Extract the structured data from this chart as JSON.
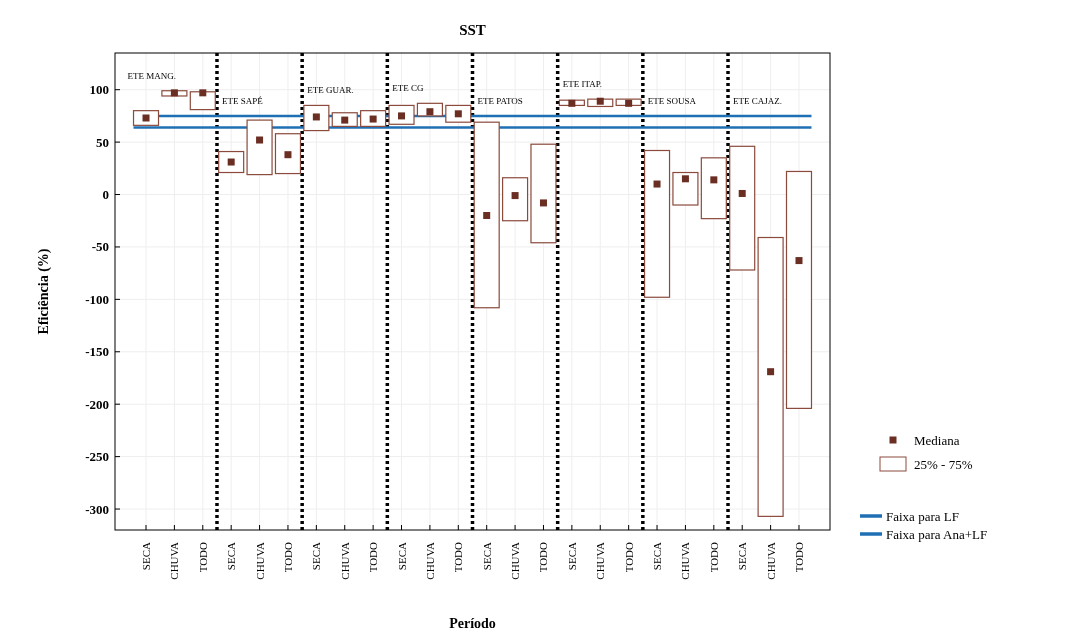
{
  "chart_data": {
    "type": "bar",
    "title": "SST",
    "xlabel": "Período",
    "ylabel": "Eficiência (%)",
    "categories": [
      "SECA",
      "CHUVA",
      "TODO",
      "SECA",
      "CHUVA",
      "TODO",
      "SECA",
      "CHUVA",
      "TODO",
      "SECA",
      "CHUVA",
      "TODO",
      "SECA",
      "CHUVA",
      "TODO",
      "SECA",
      "CHUVA",
      "TODO",
      "SECA",
      "CHUVA",
      "TODO",
      "SECA",
      "CHUVA",
      "TODO"
    ],
    "annotations": [
      "ETE MANG.",
      "ETE SAPÉ",
      "ETE GUAR.",
      "ETE  CG",
      "ETE PATOS",
      "ETE ITAP.",
      "ETE SOUSA",
      "ETE CAJAZ."
    ],
    "series": [
      {
        "name": "Mediana",
        "type": "scatter",
        "color": "#6b2e22",
        "marker": "square",
        "values": [
          73,
          97,
          97,
          31,
          52,
          38,
          74,
          71,
          72,
          75,
          79,
          77,
          -20,
          -1,
          -8,
          87,
          89,
          87,
          10,
          15,
          14,
          1,
          -169,
          -63
        ]
      },
      {
        "name": "25% - 75%",
        "color": "#8b4a3c",
        "base": [
          66,
          94,
          81,
          21,
          19,
          20,
          61,
          65,
          65,
          67,
          75,
          69,
          -108,
          -25,
          -46,
          85,
          84,
          85,
          -98,
          -10,
          -23,
          -72,
          -307,
          -204
        ],
        "values": [
          14,
          5,
          17,
          20,
          52,
          38,
          24,
          13,
          15,
          18,
          12,
          16,
          177,
          41,
          94,
          5,
          7,
          6,
          140,
          31,
          58,
          118,
          266,
          226
        ]
      }
    ],
    "ref_lines": [
      {
        "axis": "y",
        "value": 75,
        "label": "Faixa para LF",
        "color": "#1f6fb5"
      },
      {
        "axis": "y",
        "value": 64,
        "label": "Faixa para Ana+LF",
        "color": "#1f6fb5"
      }
    ],
    "ylim": [
      -320,
      135
    ],
    "yticks": [
      -300,
      -250,
      -200,
      -150,
      -100,
      -50,
      0,
      50,
      100
    ],
    "grid": true,
    "legend": "right"
  }
}
